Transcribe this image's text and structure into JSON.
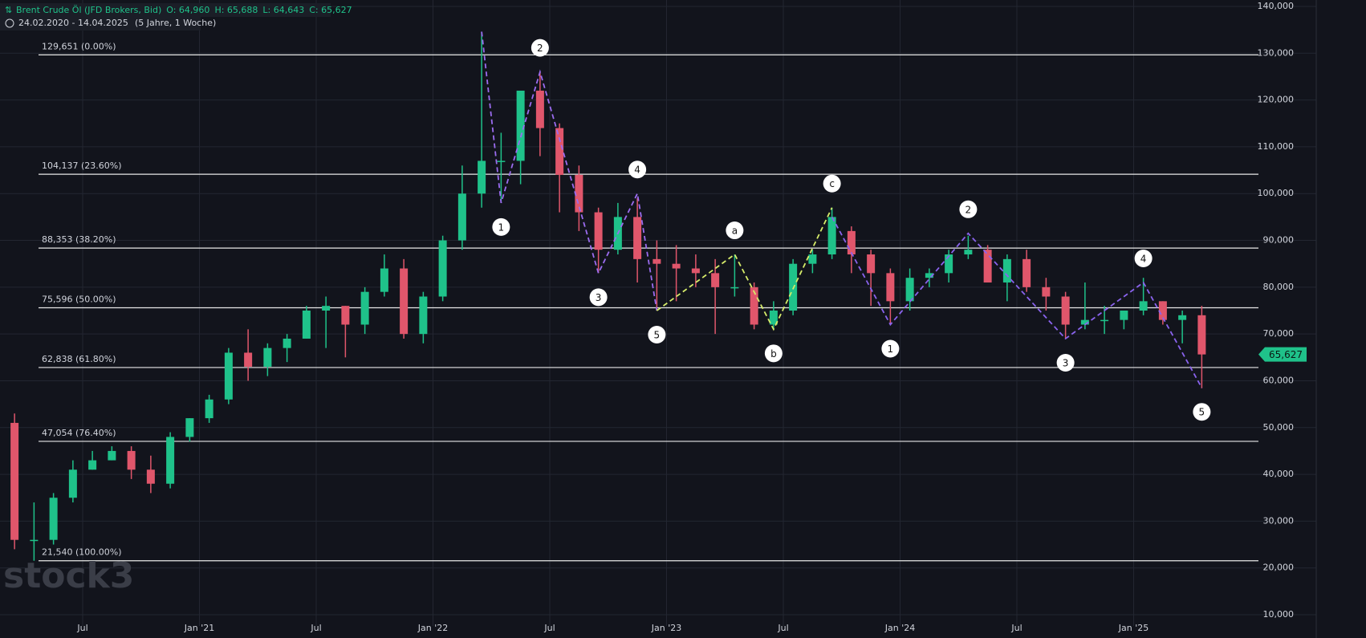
{
  "header": {
    "title": "Brent Crude Öl (JFD Brokers, Bid)",
    "open": "O: 64,960",
    "high": "H: 65,688",
    "low": "L: 64,643",
    "close": "C: 65,627",
    "range": "24.02.2020 - 14.04.2025",
    "interval": "(5 Jahre, 1 Woche)"
  },
  "watermark": "stock3",
  "chart_data": {
    "type": "candlestick",
    "up_color": "#1fc28a",
    "down_color": "#e0566b",
    "x": [
      "2020-03",
      "2020-04",
      "2020-05",
      "2020-06",
      "2020-07",
      "2020-08",
      "2020-09",
      "2020-10",
      "2020-11",
      "2020-12",
      "2021-01",
      "2021-02",
      "2021-03",
      "2021-04",
      "2021-05",
      "2021-06",
      "2021-07",
      "2021-08",
      "2021-09",
      "2021-10",
      "2021-11",
      "2021-12",
      "2022-01",
      "2022-02",
      "2022-03",
      "2022-04",
      "2022-05",
      "2022-06",
      "2022-07",
      "2022-08",
      "2022-09",
      "2022-10",
      "2022-11",
      "2022-12",
      "2023-01",
      "2023-02",
      "2023-03",
      "2023-04",
      "2023-05",
      "2023-06",
      "2023-07",
      "2023-08",
      "2023-09",
      "2023-10",
      "2023-11",
      "2023-12",
      "2024-01",
      "2024-02",
      "2024-03",
      "2024-04",
      "2024-05",
      "2024-06",
      "2024-07",
      "2024-08",
      "2024-09",
      "2024-10",
      "2024-11",
      "2024-12",
      "2025-01",
      "2025-02",
      "2025-03",
      "2025-04"
    ],
    "open": [
      51,
      26,
      26,
      35,
      41,
      43,
      45,
      41,
      38,
      48,
      52,
      56,
      66,
      63,
      67,
      69,
      75,
      76,
      72,
      79,
      84,
      70,
      78,
      90,
      100,
      107,
      107,
      122,
      114,
      104,
      96,
      88,
      95,
      86,
      85,
      84,
      83,
      80,
      80,
      72,
      75,
      85,
      87,
      92,
      87,
      83,
      77,
      82,
      83,
      87,
      88,
      81,
      86,
      80,
      78,
      72,
      73,
      73,
      75,
      77,
      73,
      74
    ],
    "high": [
      53,
      34,
      36,
      43,
      45,
      46,
      46,
      44,
      49,
      52,
      57,
      67,
      71,
      68,
      70,
      76,
      78,
      76,
      80,
      87,
      86,
      79,
      91,
      106,
      134.6,
      113,
      121,
      126,
      115,
      106,
      97,
      98,
      99,
      90,
      89,
      87,
      86,
      87,
      81,
      77,
      86,
      88,
      97,
      93,
      88,
      84,
      84,
      84,
      88,
      91,
      89,
      87,
      88,
      82,
      79,
      81,
      76,
      75,
      82,
      77,
      75,
      76
    ],
    "low": [
      24,
      21.54,
      25,
      34,
      41,
      43,
      39,
      36,
      37,
      47,
      51,
      55,
      60,
      61,
      64,
      69,
      67,
      65,
      70,
      78,
      69,
      68,
      77,
      88,
      97,
      98,
      102,
      108,
      96,
      92,
      83,
      87,
      81,
      75,
      77,
      80,
      70,
      78,
      71,
      71,
      74,
      83,
      86,
      83,
      76,
      72,
      75,
      80,
      81,
      86,
      81,
      77,
      79,
      75,
      69,
      71,
      70,
      71,
      74,
      72,
      68,
      58.4
    ],
    "close": [
      26,
      26,
      35,
      41,
      43,
      45,
      41,
      38,
      48,
      52,
      56,
      66,
      63,
      67,
      69,
      75,
      76,
      72,
      79,
      84,
      70,
      78,
      90,
      100,
      107,
      107,
      122,
      114,
      104,
      96,
      88,
      95,
      86,
      85,
      84,
      83,
      80,
      80,
      72,
      75,
      85,
      87,
      95,
      87,
      83,
      77,
      82,
      83,
      87,
      88,
      81,
      86,
      80,
      78,
      72,
      73,
      73,
      75,
      77,
      73,
      74,
      65.627
    ],
    "last_price": {
      "value": 65.627,
      "label": "65,627"
    },
    "ylim": [
      10,
      140.5
    ],
    "yticks": [
      {
        "value": 140,
        "label": "140,000"
      },
      {
        "value": 130,
        "label": "130,000"
      },
      {
        "value": 120,
        "label": "120,000"
      },
      {
        "value": 110,
        "label": "110,000"
      },
      {
        "value": 100,
        "label": "100,000"
      },
      {
        "value": 90,
        "label": "90,000"
      },
      {
        "value": 80,
        "label": "80,000"
      },
      {
        "value": 70,
        "label": "70,000"
      },
      {
        "value": 60,
        "label": "60,000"
      },
      {
        "value": 50,
        "label": "50,000"
      },
      {
        "value": 40,
        "label": "40,000"
      },
      {
        "value": 30,
        "label": "30,000"
      },
      {
        "value": 20,
        "label": "20,000"
      },
      {
        "value": 10,
        "label": "10,000"
      }
    ],
    "xticks": [
      {
        "value": "2020-07",
        "label": "Jul"
      },
      {
        "value": "2021-01",
        "label": "Jan '21"
      },
      {
        "value": "2021-07",
        "label": "Jul"
      },
      {
        "value": "2022-01",
        "label": "Jan '22"
      },
      {
        "value": "2022-07",
        "label": "Jul"
      },
      {
        "value": "2023-01",
        "label": "Jan '23"
      },
      {
        "value": "2023-07",
        "label": "Jul"
      },
      {
        "value": "2024-01",
        "label": "Jan '24"
      },
      {
        "value": "2024-07",
        "label": "Jul"
      },
      {
        "value": "2025-01",
        "label": "Jan '25"
      }
    ],
    "grid": true,
    "levels": [
      {
        "value": 129.651,
        "label": "129,651 (0.00%)"
      },
      {
        "value": 104.137,
        "label": "104,137 (23.60%)"
      },
      {
        "value": 88.353,
        "label": "88,353 (38.20%)"
      },
      {
        "value": 75.596,
        "label": "75,596 (50.00%)"
      },
      {
        "value": 62.838,
        "label": "62,838 (61.80%)"
      },
      {
        "value": 47.054,
        "label": "47,054 (76.40%)"
      },
      {
        "value": 21.54,
        "label": "21,540 (100.00%)"
      }
    ],
    "waves": [
      {
        "color": "#9b6cf0",
        "points": [
          {
            "x": "2022-03",
            "y": 134.6
          },
          {
            "x": "2022-04",
            "y": 98,
            "label": "1",
            "pos": "below"
          },
          {
            "x": "2022-06",
            "y": 126,
            "label": "2",
            "pos": "above"
          },
          {
            "x": "2022-09",
            "y": 83,
            "label": "3",
            "pos": "below"
          },
          {
            "x": "2022-11",
            "y": 100,
            "label": "4",
            "pos": "above"
          },
          {
            "x": "2022-12",
            "y": 75,
            "label": "5",
            "pos": "below"
          }
        ]
      },
      {
        "color": "#d6ec6a",
        "points": [
          {
            "x": "2022-12",
            "y": 75
          },
          {
            "x": "2023-04",
            "y": 87,
            "label": "a",
            "pos": "above"
          },
          {
            "x": "2023-06",
            "y": 71,
            "label": "b",
            "pos": "below"
          },
          {
            "x": "2023-09",
            "y": 97,
            "label": "c",
            "pos": "above"
          }
        ]
      },
      {
        "color": "#8a63ee",
        "points": [
          {
            "x": "2023-09",
            "y": 95
          },
          {
            "x": "2023-12",
            "y": 72,
            "label": "1",
            "pos": "below"
          },
          {
            "x": "2024-04",
            "y": 91.5,
            "label": "2",
            "pos": "above"
          },
          {
            "x": "2024-09",
            "y": 69,
            "label": "3",
            "pos": "below"
          },
          {
            "x": "2025-01",
            "y": 81,
            "label": "4",
            "pos": "above"
          },
          {
            "x": "2025-04",
            "y": 58.5,
            "label": "5",
            "pos": "below"
          }
        ]
      }
    ]
  }
}
